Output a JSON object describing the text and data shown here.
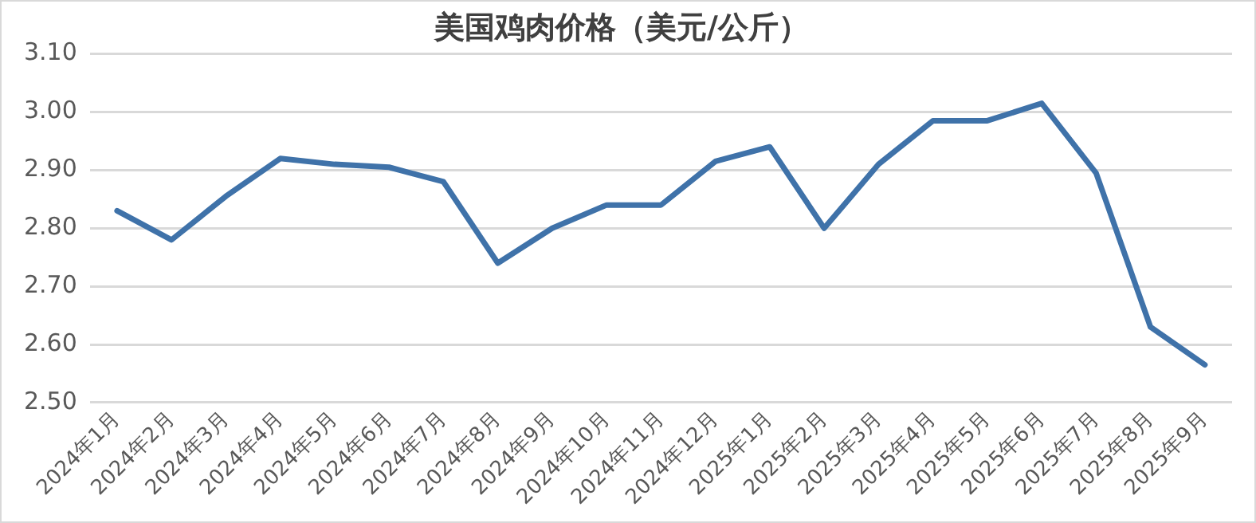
{
  "chart_data": {
    "type": "line",
    "title": "美国鸡肉价格（美元/公斤）",
    "categories": [
      "2024年1月",
      "2024年2月",
      "2024年3月",
      "2024年4月",
      "2024年5月",
      "2024年6月",
      "2024年7月",
      "2024年8月",
      "2024年9月",
      "2024年10月",
      "2024年11月",
      "2024年12月",
      "2025年1月",
      "2025年2月",
      "2025年3月",
      "2025年4月",
      "2025年5月",
      "2025年6月",
      "2025年7月",
      "2025年8月",
      "2025年9月"
    ],
    "series": [
      {
        "color": "#3f72a9",
        "values": [
          2.83,
          2.78,
          2.855,
          2.92,
          2.91,
          2.905,
          2.88,
          2.74,
          2.8,
          2.84,
          2.84,
          2.915,
          2.94,
          2.8,
          2.91,
          2.985,
          2.985,
          3.015,
          2.895,
          2.63,
          2.565
        ]
      }
    ],
    "ylim": [
      2.5,
      3.1
    ],
    "yticks": [
      {
        "value": 2.5,
        "label": "2.50"
      },
      {
        "value": 2.6,
        "label": "2.60"
      },
      {
        "value": 2.7,
        "label": "2.70"
      },
      {
        "value": 2.8,
        "label": "2.80"
      },
      {
        "value": 2.9,
        "label": "2.90"
      },
      {
        "value": 3.0,
        "label": "3.00"
      },
      {
        "value": 3.1,
        "label": "3.10"
      }
    ],
    "grid": "y",
    "legend": false,
    "marker": "none",
    "line_style": "solid"
  }
}
